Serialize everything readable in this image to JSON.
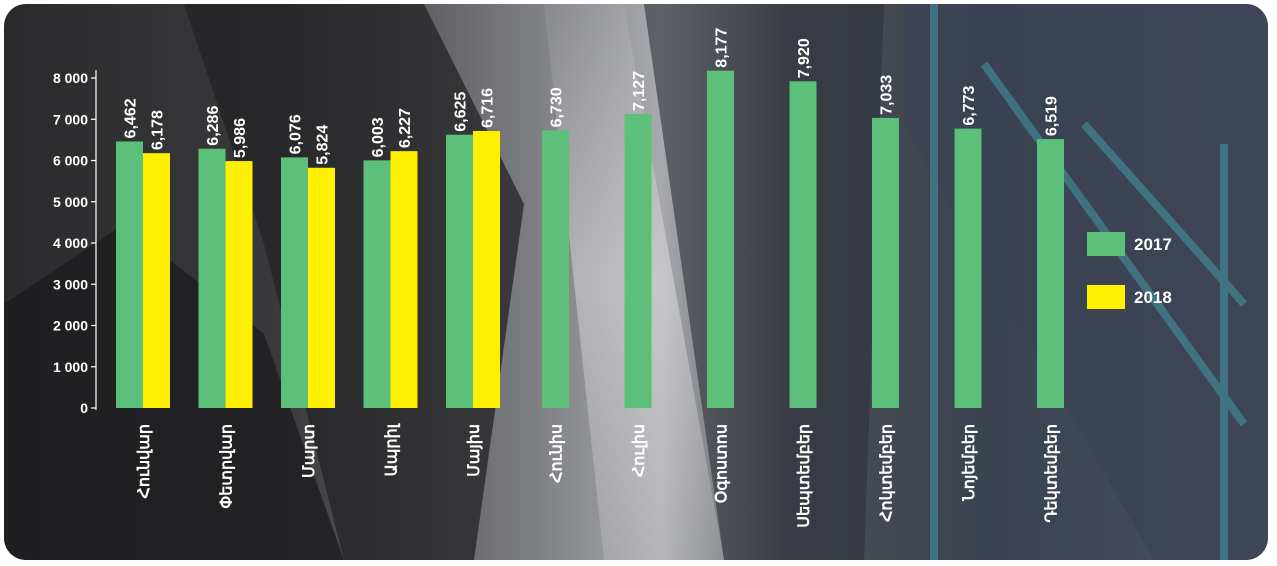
{
  "chart_data": {
    "type": "bar",
    "categories": [
      "Հունվար",
      "Փետրվար",
      "Մարտ",
      "Ապրիլ",
      "Մայիս",
      "Հունիս",
      "Հուլիս",
      "Օգոստոս",
      "Սեպտեմբեր",
      "Հոկտեմբեր",
      "Նոյեմբեր",
      "Դեկտեմբեր"
    ],
    "series": [
      {
        "name": "2017",
        "color": "#5cbf7a",
        "values": [
          6462,
          6286,
          6076,
          6003,
          6625,
          6730,
          7127,
          8177,
          7920,
          7033,
          6773,
          6519
        ],
        "labels": [
          "6,462",
          "6,286",
          "6,076",
          "6,003",
          "6,625",
          "6,730",
          "7,127",
          "8,177",
          "7,920",
          "7,033",
          "6,773",
          "6,519"
        ]
      },
      {
        "name": "2018",
        "color": "#ffef00",
        "values": [
          6178,
          5986,
          5824,
          6227,
          6716,
          null,
          null,
          null,
          null,
          null,
          null,
          null
        ],
        "labels": [
          "6,178",
          "5,986",
          "5,824",
          "6,227",
          "6,716",
          null,
          null,
          null,
          null,
          null,
          null,
          null
        ]
      }
    ],
    "ylim": [
      0,
      8000
    ],
    "yticks": [
      0,
      1000,
      2000,
      3000,
      4000,
      5000,
      6000,
      7000,
      8000
    ],
    "ytick_labels": [
      "0",
      "1 000",
      "2 000",
      "3 000",
      "4 000",
      "5 000",
      "6 000",
      "7 000",
      "8 000"
    ],
    "legend_position": "right",
    "grid": false,
    "background": "dark waterfall photo"
  }
}
